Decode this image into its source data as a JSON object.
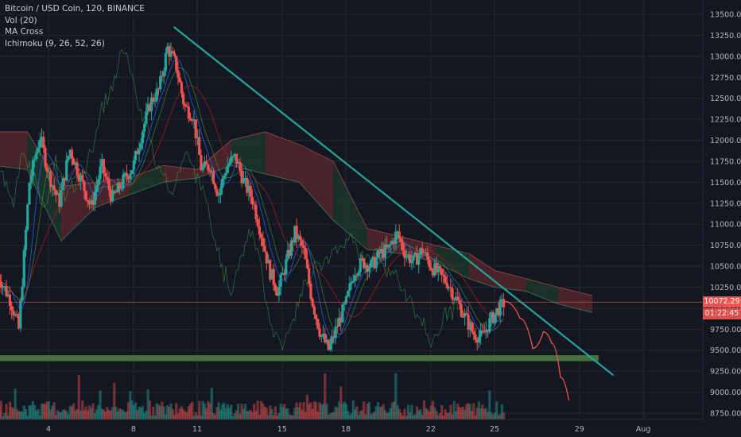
{
  "legend": {
    "symbol": "Bitcoin / USD Coin, 120, BINANCE",
    "indicator_1": "Vol (20)",
    "indicator_2": "MA Cross",
    "indicator_3": "Ichimoku (9, 26, 52, 26)"
  },
  "price_tags": {
    "current_price": "10072.29",
    "countdown": "01:22:45"
  },
  "colors": {
    "background": "#131722",
    "grid": "#242832",
    "up": "#26a69a",
    "down": "#ef5350",
    "trendline": "#26a69a",
    "support_zone": "#4c7a3d",
    "projection": "#ef5350",
    "cloud_bear": "#5b2a2e",
    "cloud_bull": "#1e3b2e"
  },
  "chart_data": {
    "type": "candlestick",
    "y_ticks": [
      "13500.00",
      "13250.00",
      "13000.00",
      "12750.00",
      "12500.00",
      "12250.00",
      "12000.00",
      "11750.00",
      "11500.00",
      "11250.00",
      "11000.00",
      "10750.00",
      "10500.00",
      "10250.00",
      "10000.00",
      "9750.00",
      "9500.00",
      "9250.00",
      "9000.00",
      "8750.00"
    ],
    "y_tick_values": [
      13500,
      13250,
      13000,
      12750,
      12500,
      12250,
      12000,
      11750,
      11500,
      11250,
      11000,
      10750,
      10500,
      10250,
      10000,
      9750,
      9500,
      9250,
      9000,
      8750
    ],
    "x_ticks": [
      "4",
      "8",
      "11",
      "15",
      "18",
      "22",
      "25",
      "29",
      "Aug"
    ],
    "x_tick_days": [
      4,
      8,
      11,
      15,
      18,
      22,
      25,
      29,
      32
    ],
    "ylim": [
      8700,
      13600
    ],
    "xlim_days": [
      1.4,
      35.0
    ],
    "current_price": 10072.29,
    "price_path": [
      [
        1.6,
        10400
      ],
      [
        2.2,
        10100
      ],
      [
        2.6,
        9750
      ],
      [
        3.1,
        11500
      ],
      [
        3.6,
        12050
      ],
      [
        4.0,
        11600
      ],
      [
        4.5,
        11250
      ],
      [
        5.0,
        11900
      ],
      [
        5.5,
        11550
      ],
      [
        6.0,
        11200
      ],
      [
        6.5,
        11700
      ],
      [
        7.0,
        11300
      ],
      [
        7.6,
        11550
      ],
      [
        8.0,
        11700
      ],
      [
        8.4,
        12100
      ],
      [
        8.8,
        12450
      ],
      [
        9.2,
        12600
      ],
      [
        9.6,
        13100
      ],
      [
        10.0,
        12900
      ],
      [
        10.4,
        12400
      ],
      [
        10.8,
        12300
      ],
      [
        11.2,
        11650
      ],
      [
        11.6,
        11700
      ],
      [
        12.0,
        11350
      ],
      [
        12.4,
        11700
      ],
      [
        12.8,
        11800
      ],
      [
        13.2,
        11500
      ],
      [
        13.6,
        11300
      ],
      [
        14.0,
        10900
      ],
      [
        14.4,
        10450
      ],
      [
        14.8,
        10200
      ],
      [
        15.2,
        10550
      ],
      [
        15.6,
        10900
      ],
      [
        16.0,
        10700
      ],
      [
        16.4,
        10100
      ],
      [
        16.8,
        9700
      ],
      [
        17.2,
        9500
      ],
      [
        17.6,
        9800
      ],
      [
        18.0,
        10050
      ],
      [
        18.4,
        10450
      ],
      [
        18.8,
        10550
      ],
      [
        19.2,
        10500
      ],
      [
        19.6,
        10650
      ],
      [
        20.0,
        10700
      ],
      [
        20.4,
        10900
      ],
      [
        20.8,
        10650
      ],
      [
        21.2,
        10550
      ],
      [
        21.6,
        10700
      ],
      [
        22.0,
        10500
      ],
      [
        22.4,
        10400
      ],
      [
        22.8,
        10300
      ],
      [
        23.2,
        10100
      ],
      [
        23.6,
        9900
      ],
      [
        24.0,
        9700
      ],
      [
        24.4,
        9650
      ],
      [
        24.8,
        9850
      ],
      [
        25.2,
        10000
      ],
      [
        25.5,
        10072
      ]
    ],
    "trendline": [
      [
        9.9,
        13350
      ],
      [
        30.6,
        9200
      ]
    ],
    "support_zone": [
      9370,
      9440
    ],
    "projection": [
      [
        25.5,
        10080
      ],
      [
        26.2,
        9880
      ],
      [
        26.8,
        9520
      ],
      [
        27.3,
        9720
      ],
      [
        27.7,
        9580
      ],
      [
        28.1,
        9180
      ],
      [
        28.5,
        8900
      ]
    ],
    "cloud": [
      [
        1.4,
        12100,
        11700
      ],
      [
        3.0,
        12100,
        11650
      ],
      [
        4.6,
        11450,
        10800
      ],
      [
        6.2,
        11500,
        11200
      ],
      [
        7.8,
        11550,
        11350
      ],
      [
        9.4,
        11700,
        11500
      ],
      [
        11.0,
        11650,
        11550
      ],
      [
        12.6,
        12000,
        11700
      ],
      [
        14.2,
        12100,
        11600
      ],
      [
        15.8,
        11950,
        11500
      ],
      [
        17.4,
        11750,
        11050
      ],
      [
        19.0,
        10950,
        10700
      ],
      [
        20.6,
        10850,
        10650
      ],
      [
        22.2,
        10750,
        10550
      ],
      [
        23.8,
        10650,
        10350
      ],
      [
        25.0,
        10450,
        10250
      ],
      [
        26.5,
        10350,
        10200
      ],
      [
        28.0,
        10250,
        10050
      ],
      [
        29.6,
        10150,
        9950
      ]
    ],
    "volume_max": 3200
  }
}
